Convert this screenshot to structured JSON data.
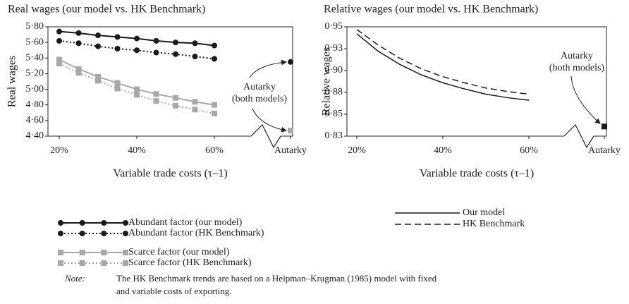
{
  "chart_data": [
    {
      "type": "line",
      "title": "Real wages (our model vs. HK Benchmark)",
      "y_label": "Real wages",
      "x_label": "Variable trade costs (τ–1)",
      "x": [
        20,
        25,
        30,
        35,
        40,
        45,
        50,
        55,
        60
      ],
      "xlim": [
        20,
        60
      ],
      "xticks": [
        {
          "value": 20,
          "label": "20%"
        },
        {
          "value": 40,
          "label": "40%"
        },
        {
          "value": 60,
          "label": "60%"
        }
      ],
      "ylim": [
        4.4,
        5.8
      ],
      "yticks": [
        {
          "value": 4.4,
          "label": "4·40"
        },
        {
          "value": 4.6,
          "label": "4·60"
        },
        {
          "value": 4.8,
          "label": "4·80"
        },
        {
          "value": 5.0,
          "label": "5·00"
        },
        {
          "value": 5.2,
          "label": "5·20"
        },
        {
          "value": 5.4,
          "label": "5·40"
        },
        {
          "value": 5.6,
          "label": "5·60"
        },
        {
          "value": 5.8,
          "label": "5·80"
        }
      ],
      "series": [
        {
          "name": "Abundant factor (our model)",
          "color": "#1a1a1a",
          "style": "solid",
          "marker": "circle",
          "values": [
            5.74,
            5.72,
            5.69,
            5.67,
            5.65,
            5.62,
            5.6,
            5.59,
            5.56
          ]
        },
        {
          "name": "Abundant factor (HK Benchmark)",
          "color": "#1a1a1a",
          "style": "dotted",
          "marker": "circle",
          "values": [
            5.62,
            5.59,
            5.55,
            5.52,
            5.5,
            5.47,
            5.45,
            5.42,
            5.39
          ]
        },
        {
          "name": "Scarce factor (our model)",
          "color": "#a8a8a8",
          "style": "solid",
          "marker": "square",
          "values": [
            5.38,
            5.26,
            5.16,
            5.08,
            5.0,
            4.94,
            4.89,
            4.84,
            4.8
          ]
        },
        {
          "name": "Scarce factor (HK Benchmark)",
          "color": "#a8a8a8",
          "style": "dotted",
          "marker": "square",
          "values": [
            5.33,
            5.21,
            5.11,
            5.01,
            4.93,
            4.85,
            4.79,
            4.74,
            4.69
          ]
        }
      ],
      "autarky": {
        "label": "Autarky",
        "values": [
          5.35,
          4.47
        ],
        "colors": [
          "#1a1a1a",
          "#a8a8a8"
        ],
        "markers": [
          "circle",
          "square"
        ]
      },
      "annotation": [
        "Autarky",
        "(both models)"
      ]
    },
    {
      "type": "line",
      "title": "Relative wages (our model vs. HK Benchmark)",
      "y_label": "Relative wages",
      "x_label": "Variable trade costs (τ–1)",
      "x": [
        20,
        25,
        30,
        35,
        40,
        45,
        50,
        55,
        60
      ],
      "xlim": [
        20,
        60
      ],
      "xticks": [
        {
          "value": 20,
          "label": "20%"
        },
        {
          "value": 40,
          "label": "40%"
        },
        {
          "value": 60,
          "label": "60%"
        }
      ],
      "ylim": [
        0.825,
        0.95
      ],
      "yticks": [
        {
          "value": 0.825,
          "label": "0·83"
        },
        {
          "value": 0.85,
          "label": "0·85"
        },
        {
          "value": 0.875,
          "label": "0·88"
        },
        {
          "value": 0.9,
          "label": "0·90"
        },
        {
          "value": 0.925,
          "label": "0·93"
        },
        {
          "value": 0.95,
          "label": "0·95"
        }
      ],
      "series": [
        {
          "name": "Our model",
          "color": "#1a1a1a",
          "style": "solid",
          "marker": "none",
          "values": [
            0.942,
            0.922,
            0.907,
            0.895,
            0.886,
            0.879,
            0.873,
            0.869,
            0.866
          ]
        },
        {
          "name": "HK Benchmark",
          "color": "#1a1a1a",
          "style": "dashed",
          "marker": "none",
          "values": [
            0.947,
            0.929,
            0.914,
            0.902,
            0.893,
            0.886,
            0.88,
            0.876,
            0.873
          ]
        }
      ],
      "autarky": {
        "label": "Autarky",
        "values": [
          0.836
        ],
        "colors": [
          "#1a1a1a"
        ],
        "markers": [
          "square"
        ]
      },
      "annotation": [
        "Autarky",
        "(both models)"
      ]
    }
  ],
  "note": {
    "label": "Note:",
    "lines": [
      "The HK Benchmark trends are based on a Helpman–Krugman (1985) model with fixed",
      "and variable costs of exporting."
    ]
  }
}
